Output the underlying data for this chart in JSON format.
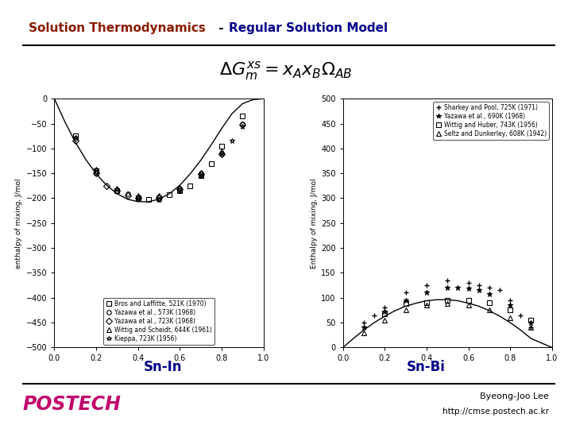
{
  "title_part1": "Solution Thermodynamics",
  "title_dash": " -  ",
  "title_part2": "Regular Solution Model",
  "title_color1": "#8B1A00",
  "title_color2": "#00008B",
  "bg_color": "#FFFFFF",
  "sn_in_label": "Sn-In",
  "sn_bi_label": "Sn-Bi",
  "label_color": "#00008B",
  "footer_text1": "Byeong-Joo Lee",
  "footer_text2": "http://cmse.postech.ac.kr",
  "postech_color": "#C0006A",
  "sn_in": {
    "curve_x": [
      0.0,
      0.05,
      0.1,
      0.15,
      0.2,
      0.25,
      0.3,
      0.35,
      0.4,
      0.45,
      0.5,
      0.55,
      0.6,
      0.65,
      0.7,
      0.75,
      0.8,
      0.85,
      0.9,
      0.95,
      1.0
    ],
    "curve_y": [
      0,
      -46,
      -87,
      -122,
      -151,
      -174,
      -191,
      -202,
      -207,
      -207,
      -202,
      -191,
      -174,
      -151,
      -124,
      -93,
      -60,
      -30,
      -10,
      -2,
      0
    ],
    "ylabel": "enthalpy of mixing, J/mol",
    "ylim": [
      -500,
      0
    ],
    "yticks": [
      0,
      -50,
      -100,
      -150,
      -200,
      -250,
      -300,
      -350,
      -400,
      -450,
      -500
    ],
    "xlim": [
      0,
      1.0
    ],
    "xticks": [
      0,
      0.2,
      0.4,
      0.6,
      0.8,
      1.0
    ],
    "legend_loc": "lower center",
    "datasets": [
      {
        "label": "Bros and Laffitte, 521K (1970)",
        "marker": "s",
        "x": [
          0.1,
          0.2,
          0.3,
          0.4,
          0.45,
          0.5,
          0.55,
          0.6,
          0.65,
          0.7,
          0.75,
          0.8,
          0.9
        ],
        "y": [
          -75,
          -145,
          -185,
          -200,
          -203,
          -200,
          -193,
          -185,
          -175,
          -155,
          -130,
          -95,
          -35
        ],
        "filled": false
      },
      {
        "label": "Yazawa et al., 573K (1968)",
        "marker": "o",
        "x": [
          0.1,
          0.2,
          0.3,
          0.35,
          0.4,
          0.5,
          0.6,
          0.7,
          0.8,
          0.9
        ],
        "y": [
          -80,
          -145,
          -185,
          -192,
          -200,
          -202,
          -180,
          -150,
          -110,
          -50
        ],
        "filled": false
      },
      {
        "label": "Yazawa et al., 723K (1968)",
        "marker": "D",
        "x": [
          0.1,
          0.2,
          0.25,
          0.3,
          0.35,
          0.4,
          0.5,
          0.6,
          0.7,
          0.8,
          0.9
        ],
        "y": [
          -85,
          -150,
          -175,
          -185,
          -195,
          -200,
          -200,
          -182,
          -152,
          -112,
          -52
        ],
        "filled": false
      },
      {
        "label": "Wittig and Scheidt, 644K (1961)",
        "marker": "^",
        "x": [
          0.2,
          0.3,
          0.4,
          0.5,
          0.6,
          0.7,
          0.8
        ],
        "y": [
          -148,
          -180,
          -195,
          -195,
          -178,
          -148,
          -105
        ],
        "filled": false
      },
      {
        "label": "Kieppa, 723K (1956)",
        "marker": "*",
        "x": [
          0.1,
          0.2,
          0.3,
          0.4,
          0.5,
          0.6,
          0.7,
          0.8,
          0.85,
          0.9
        ],
        "y": [
          -78,
          -142,
          -182,
          -200,
          -202,
          -185,
          -155,
          -110,
          -85,
          -55
        ],
        "filled": false
      }
    ]
  },
  "sn_bi": {
    "curve_x": [
      0.0,
      0.05,
      0.1,
      0.15,
      0.2,
      0.25,
      0.3,
      0.35,
      0.4,
      0.45,
      0.5,
      0.55,
      0.6,
      0.65,
      0.7,
      0.75,
      0.8,
      0.85,
      0.9,
      0.95,
      1.0
    ],
    "curve_y": [
      0,
      18,
      35,
      50,
      63,
      74,
      83,
      89,
      94,
      96,
      96,
      94,
      89,
      83,
      74,
      63,
      50,
      35,
      18,
      9,
      0
    ],
    "ylabel": "Enthalpy of mixing, J/mol",
    "ylim": [
      0,
      500
    ],
    "yticks": [
      0,
      50,
      100,
      150,
      200,
      250,
      300,
      350,
      400,
      450,
      500
    ],
    "xlim": [
      0,
      1.0
    ],
    "xticks": [
      0,
      0.2,
      0.4,
      0.6,
      0.8,
      1.0
    ],
    "legend_loc": "upper right",
    "datasets": [
      {
        "label": "Sharkey and Pool, 725K (1971)",
        "marker": "+",
        "x": [
          0.1,
          0.15,
          0.2,
          0.3,
          0.4,
          0.5,
          0.6,
          0.65,
          0.7,
          0.75,
          0.8,
          0.85,
          0.9
        ],
        "y": [
          50,
          65,
          80,
          110,
          125,
          135,
          130,
          125,
          120,
          115,
          95,
          65,
          40
        ],
        "filled": true
      },
      {
        "label": "Yazawa et al., 690K (1968)",
        "marker": "*",
        "x": [
          0.1,
          0.2,
          0.3,
          0.4,
          0.5,
          0.55,
          0.6,
          0.65,
          0.7,
          0.8,
          0.9
        ],
        "y": [
          40,
          72,
          95,
          110,
          120,
          120,
          118,
          115,
          108,
          85,
          50
        ],
        "filled": true
      },
      {
        "label": "Wittig and Huber, 743K (1956)",
        "marker": "s",
        "x": [
          0.2,
          0.3,
          0.4,
          0.5,
          0.6,
          0.7,
          0.8,
          0.9
        ],
        "y": [
          68,
          88,
          90,
          95,
          95,
          90,
          75,
          55
        ],
        "filled": false
      },
      {
        "label": "Seltz and Dunkerley, 608K (1942)",
        "marker": "^",
        "x": [
          0.1,
          0.2,
          0.3,
          0.4,
          0.5,
          0.6,
          0.7,
          0.8,
          0.9
        ],
        "y": [
          30,
          55,
          75,
          85,
          88,
          85,
          75,
          60,
          40
        ],
        "filled": false
      }
    ]
  }
}
